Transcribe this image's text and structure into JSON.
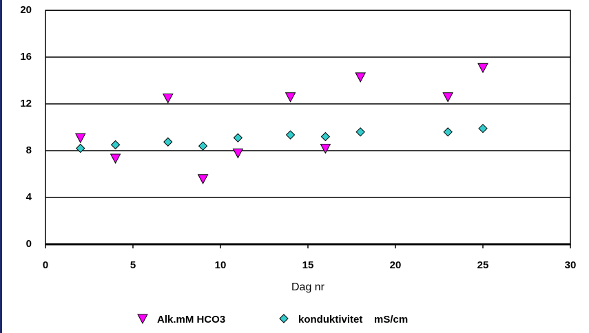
{
  "chart_data": {
    "type": "scatter",
    "x_label": "Dag nr",
    "xlim": [
      0,
      30
    ],
    "xticks": [
      0,
      5,
      10,
      15,
      20,
      25,
      30
    ],
    "ylim": [
      0,
      20
    ],
    "yticks": [
      0,
      4,
      8,
      12,
      16,
      20
    ],
    "grid": true,
    "legend": "bottom",
    "series": [
      {
        "name": "Alk.mM HCO3",
        "color": "#ff00ff",
        "marker": "triangle-down",
        "x": [
          2,
          4,
          7,
          9,
          11,
          14,
          16,
          18,
          23,
          25
        ],
        "values": [
          9.1,
          7.35,
          12.5,
          5.6,
          7.8,
          12.6,
          8.2,
          14.3,
          12.6,
          15.1
        ]
      },
      {
        "name": "konduktivitet    mS/cm",
        "color": "#33cccc",
        "marker": "diamond",
        "x": [
          2,
          4,
          7,
          9,
          11,
          14,
          16,
          18,
          23,
          25
        ],
        "values": [
          8.2,
          8.5,
          8.75,
          8.4,
          9.1,
          9.35,
          9.2,
          9.6,
          9.6,
          9.9
        ]
      }
    ]
  }
}
